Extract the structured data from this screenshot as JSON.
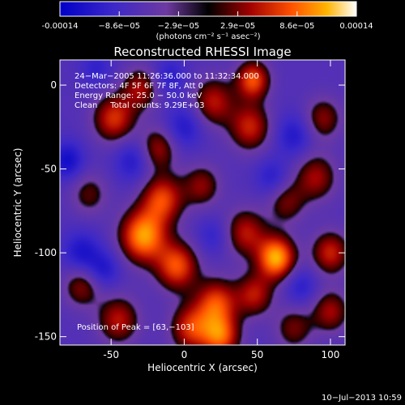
{
  "chart_data": {
    "type": "heatmap",
    "title": "Reconstructed RHESSI Image",
    "xlabel": "Heliocentric X (arcsec)",
    "ylabel": "Heliocentric Y (arcsec)",
    "xlim": [
      -85,
      110
    ],
    "ylim": [
      -155,
      15
    ],
    "x_ticks": [
      -50,
      0,
      50,
      100
    ],
    "y_ticks": [
      0,
      -50,
      -100,
      -150
    ],
    "colorbar": {
      "ticks": [
        "-0.00014",
        "−8.6e−05",
        "−2.9e−05",
        "2.9e−05",
        "8.6e−05",
        "0.00014"
      ],
      "range": [
        -0.00014,
        0.00014
      ],
      "unit_label": "(photons cm⁻² s⁻¹ asec⁻²)"
    },
    "annotations": [
      "24−Mar−2005 11:26:36.000 to 11:32:34.000",
      "Detectors: 4F 5F 6F 7F 8F, Att 0",
      "Energy Range: 25.0 − 50.0 keV",
      "Clean     Total counts: 9.29E+03"
    ],
    "peak_label": "Position of Peak = [63,−103]",
    "peak": [
      63,
      -103
    ],
    "footer_date": "10−Jul−2013 10:59",
    "grid": false,
    "sources": [
      {
        "x": 63,
        "y": -103,
        "amp": 1.0,
        "sigma": 9
      },
      {
        "x": -28,
        "y": -90,
        "amp": 0.95,
        "sigma": 11
      },
      {
        "x": -15,
        "y": -68,
        "amp": 0.7,
        "sigma": 10
      },
      {
        "x": -5,
        "y": -108,
        "amp": 0.75,
        "sigma": 10
      },
      {
        "x": 22,
        "y": -130,
        "amp": 0.7,
        "sigma": 10
      },
      {
        "x": 25,
        "y": -150,
        "amp": 0.75,
        "sigma": 9
      },
      {
        "x": 5,
        "y": -145,
        "amp": 0.65,
        "sigma": 10
      },
      {
        "x": -45,
        "y": -140,
        "amp": 0.55,
        "sigma": 10
      },
      {
        "x": 48,
        "y": -125,
        "amp": 0.55,
        "sigma": 9
      },
      {
        "x": 42,
        "y": -88,
        "amp": 0.55,
        "sigma": 10
      },
      {
        "x": 100,
        "y": -100,
        "amp": 0.6,
        "sigma": 9
      },
      {
        "x": 100,
        "y": -135,
        "amp": 0.5,
        "sigma": 9
      },
      {
        "x": 90,
        "y": -55,
        "amp": 0.5,
        "sigma": 10
      },
      {
        "x": 95,
        "y": -20,
        "amp": 0.45,
        "sigma": 9
      },
      {
        "x": 45,
        "y": -25,
        "amp": 0.6,
        "sigma": 10
      },
      {
        "x": 47,
        "y": 3,
        "amp": 0.75,
        "sigma": 8
      },
      {
        "x": 20,
        "y": -10,
        "amp": 0.55,
        "sigma": 10
      },
      {
        "x": -48,
        "y": -20,
        "amp": 0.65,
        "sigma": 10
      },
      {
        "x": -30,
        "y": -2,
        "amp": 0.5,
        "sigma": 9
      },
      {
        "x": -18,
        "y": -38,
        "amp": 0.5,
        "sigma": 9
      },
      {
        "x": 12,
        "y": -60,
        "amp": 0.45,
        "sigma": 9
      },
      {
        "x": 70,
        "y": -70,
        "amp": 0.4,
        "sigma": 9
      },
      {
        "x": -65,
        "y": -65,
        "amp": 0.35,
        "sigma": 9
      },
      {
        "x": -70,
        "y": -120,
        "amp": 0.45,
        "sigma": 9
      },
      {
        "x": 75,
        "y": -145,
        "amp": 0.4,
        "sigma": 9
      },
      {
        "x": -80,
        "y": -45,
        "amp": -0.45,
        "sigma": 8
      },
      {
        "x": -70,
        "y": -100,
        "amp": -0.4,
        "sigma": 9
      },
      {
        "x": -35,
        "y": -45,
        "amp": -0.35,
        "sigma": 9
      },
      {
        "x": -55,
        "y": -110,
        "amp": -0.35,
        "sigma": 8
      },
      {
        "x": 0,
        "y": -25,
        "amp": -0.35,
        "sigma": 9
      },
      {
        "x": 75,
        "y": -30,
        "amp": -0.35,
        "sigma": 9
      },
      {
        "x": 80,
        "y": -120,
        "amp": -0.3,
        "sigma": 8
      },
      {
        "x": 60,
        "y": -55,
        "amp": -0.3,
        "sigma": 8
      },
      {
        "x": -10,
        "y": 5,
        "amp": -0.3,
        "sigma": 8
      },
      {
        "x": -60,
        "y": 10,
        "amp": -0.25,
        "sigma": 8
      },
      {
        "x": 20,
        "y": -90,
        "amp": -0.25,
        "sigma": 8
      }
    ]
  }
}
